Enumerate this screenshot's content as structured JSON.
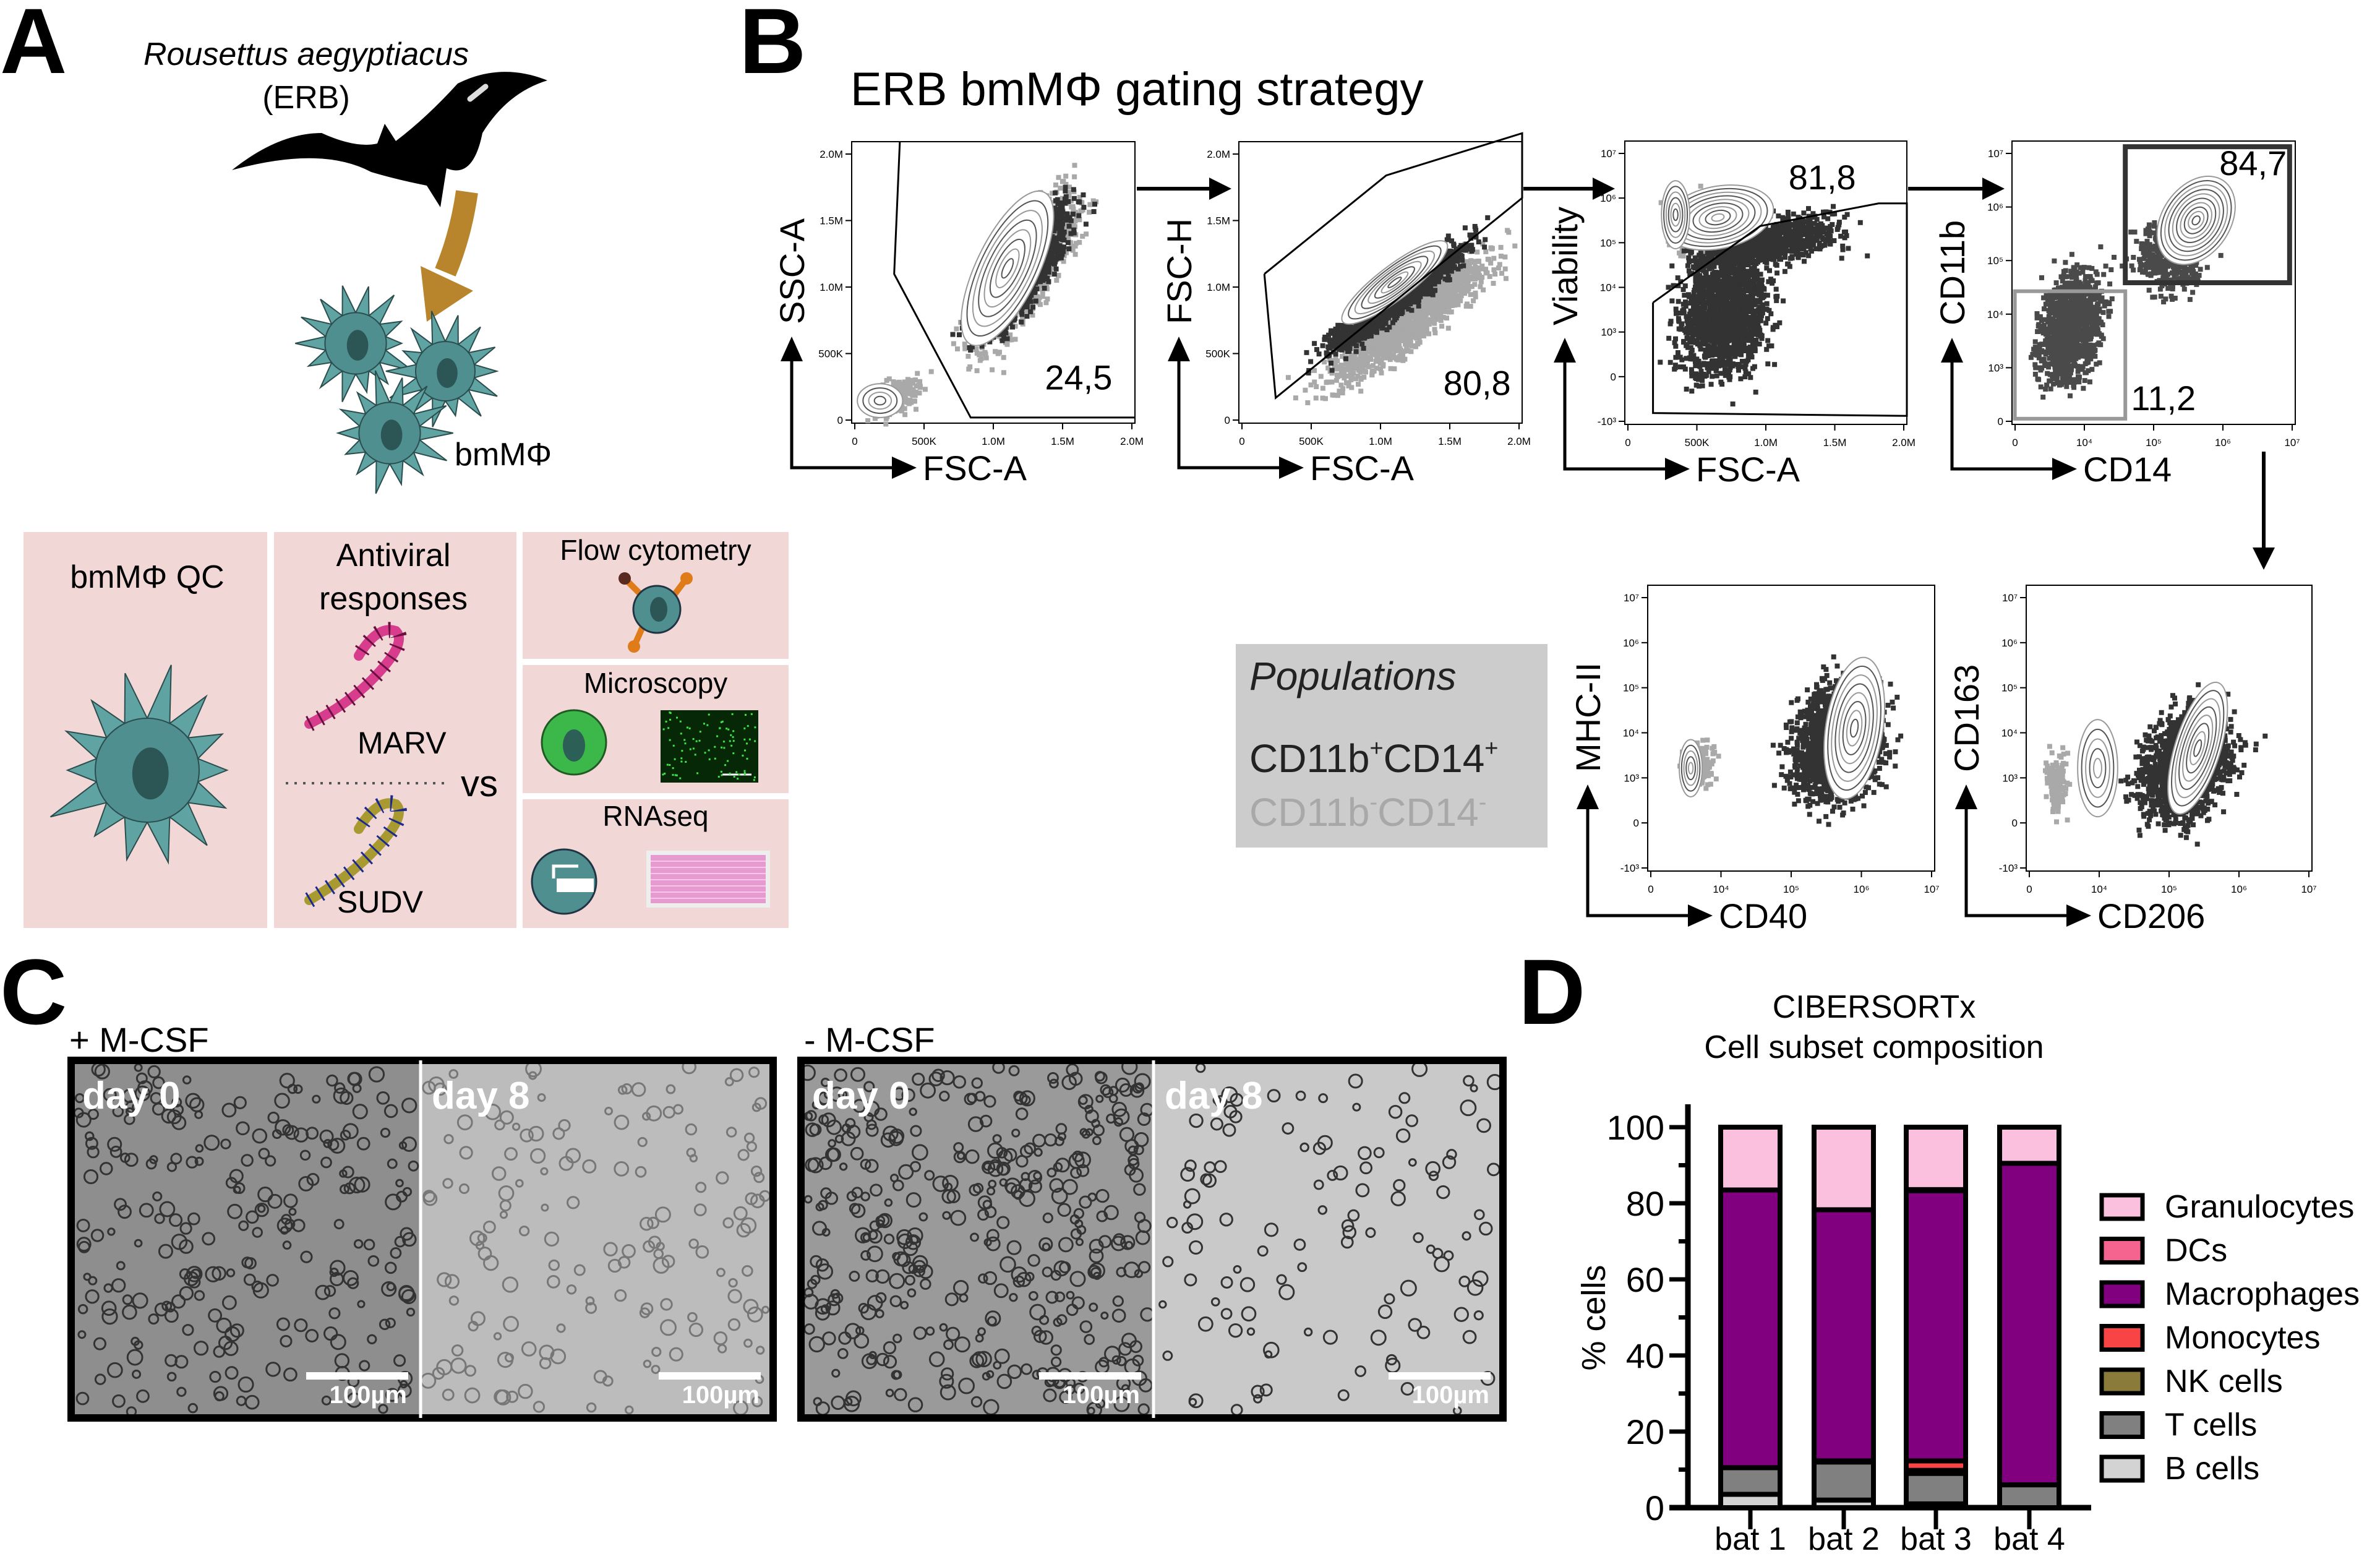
{
  "panel_labels": {
    "a": "A",
    "b": "B",
    "c": "C",
    "d": "D"
  },
  "panel_a": {
    "species": "Rousettus aegyptiacus",
    "abbrev": "(ERB)",
    "cell_label": "bmMΦ",
    "boxes": {
      "qc": "bmMΦ QC",
      "antiviral_line1": "Antiviral",
      "antiviral_line2": "responses",
      "virus1": "MARV",
      "virus2": "SUDV",
      "vs": "vs",
      "flow": "Flow cytometry",
      "microscopy": "Microscopy",
      "rnaseq": "RNAseq"
    },
    "colors": {
      "box": "#f2d7d7",
      "cell": "#4f8f8f",
      "arrow": "#b9852c",
      "marv": "#d83c8c",
      "sudv": "#a89a30"
    }
  },
  "panel_b": {
    "title": "ERB bmMΦ gating strategy",
    "plots": [
      {
        "x_label": "FSC-A",
        "y_label": "SSC-A",
        "gate_value": "24,5",
        "x_ticks": [
          "0",
          "500K",
          "1.0M",
          "1.5M",
          "2.0M"
        ],
        "y_ticks": [
          "0",
          "500K",
          "1.0M",
          "1.5M",
          "2.0M"
        ]
      },
      {
        "x_label": "FSC-A",
        "y_label": "FSC-H",
        "gate_value": "80,8",
        "x_ticks": [
          "0",
          "500K",
          "1.0M",
          "1.5M",
          "2.0M"
        ],
        "y_ticks": [
          "0",
          "500K",
          "1.0M",
          "1.5M",
          "2.0M"
        ]
      },
      {
        "x_label": "FSC-A",
        "y_label": "Viability",
        "gate_value": "81,8",
        "x_ticks": [
          "0",
          "500K",
          "1.0M",
          "1.5M",
          "2.0M"
        ],
        "y_ticks": [
          "-10³",
          "0",
          "10³",
          "10⁴",
          "10⁵",
          "10⁶",
          "10⁷"
        ]
      },
      {
        "x_label": "CD14",
        "y_label": "CD11b",
        "gate_value": "84,7",
        "gate_value_2": "11,2",
        "x_ticks": [
          "0",
          "10⁴",
          "10⁵",
          "10⁶",
          "10⁷"
        ],
        "y_ticks": [
          "0",
          "10³",
          "10⁴",
          "10⁵",
          "10⁶",
          "10⁷"
        ]
      },
      {
        "x_label": "CD40",
        "y_label": "MHC-II",
        "x_ticks": [
          "0",
          "10⁴",
          "10⁵",
          "10⁶",
          "10⁷"
        ],
        "y_ticks": [
          "-10³",
          "0",
          "10³",
          "10⁴",
          "10⁵",
          "10⁶",
          "10⁷"
        ]
      },
      {
        "x_label": "CD206",
        "y_label": "CD163",
        "x_ticks": [
          "0",
          "10⁴",
          "10⁵",
          "10⁶",
          "10⁷"
        ],
        "y_ticks": [
          "-10³",
          "0",
          "10³",
          "10⁴",
          "10⁵",
          "10⁶",
          "10⁷"
        ]
      }
    ],
    "legend": {
      "title": "Populations",
      "pos": {
        "a": "CD11b",
        "sa": "+",
        "b": "CD14",
        "sb": "+"
      },
      "neg": {
        "a": "CD11b",
        "sa": "-",
        "b": "CD14",
        "sb": "-"
      },
      "colors": {
        "pos": "#222222",
        "neg": "#a8a8a8",
        "box": "#cccccc"
      }
    }
  },
  "panel_c": {
    "groups": [
      {
        "label": "+ M-CSF",
        "images": [
          {
            "label": "day 0",
            "scale_bar": "100µm"
          },
          {
            "label": "day 8",
            "scale_bar": "100µm"
          }
        ]
      },
      {
        "label": "- M-CSF",
        "images": [
          {
            "label": "day 0",
            "scale_bar": "100µm"
          },
          {
            "label": "day 8",
            "scale_bar": "100µm"
          }
        ]
      }
    ]
  },
  "chart_data": {
    "type": "bar",
    "stacked": true,
    "title": "CIBERSORTx",
    "subtitle": "Cell subset composition",
    "xlabel": "",
    "ylabel": "% cells",
    "ylim": [
      0,
      100
    ],
    "y_ticks": [
      "0",
      "20",
      "40",
      "60",
      "80",
      "100"
    ],
    "categories": [
      "bat 1",
      "bat 2",
      "bat 3",
      "bat 4"
    ],
    "legend_position": "right",
    "series": [
      {
        "name": "B cells",
        "color": "#d3d3d3",
        "values": [
          3.5,
          2,
          1,
          0
        ]
      },
      {
        "name": "T cells",
        "color": "#808080",
        "values": [
          7,
          10,
          8,
          6
        ]
      },
      {
        "name": "NK cells",
        "color": "#8b7b3a",
        "values": [
          0,
          0.3,
          0.8,
          0
        ]
      },
      {
        "name": "Monocytes",
        "color": "#f84444",
        "values": [
          0,
          0,
          2.5,
          0
        ]
      },
      {
        "name": "Macrophages",
        "color": "#800080",
        "values": [
          73,
          66,
          71,
          84.5
        ]
      },
      {
        "name": "DCs",
        "color": "#f5638f",
        "values": [
          0,
          0,
          0.3,
          0
        ]
      },
      {
        "name": "Granulocytes",
        "color": "#fbc0de",
        "values": [
          16.5,
          21.7,
          16.4,
          9.5
        ]
      }
    ],
    "legend_order": [
      "Granulocytes",
      "DCs",
      "Macrophages",
      "Monocytes",
      "NK cells",
      "T cells",
      "B cells"
    ]
  }
}
